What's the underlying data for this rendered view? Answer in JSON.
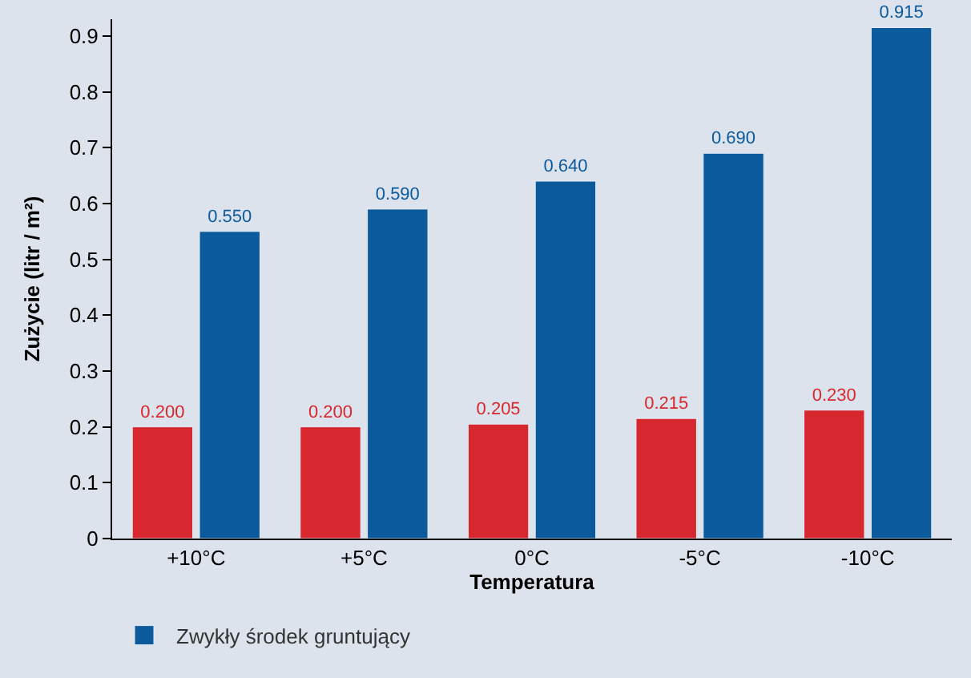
{
  "chart_data": {
    "type": "bar",
    "xlabel": "Temperatura",
    "ylabel": "Zużycie (litr / m²)",
    "categories": [
      "+10°C",
      "+5°C",
      "0°C",
      "-5°C",
      "-10°C"
    ],
    "series": [
      {
        "color": "#d7282f",
        "values": [
          0.2,
          0.2,
          0.205,
          0.215,
          0.23
        ],
        "value_labels": [
          "0.200",
          "0.200",
          "0.205",
          "0.215",
          "0.230"
        ]
      },
      {
        "name": "Zwykły środek gruntujący",
        "color": "#0b5a9c",
        "values": [
          0.55,
          0.59,
          0.64,
          0.69,
          0.915
        ],
        "value_labels": [
          "0.550",
          "0.590",
          "0.640",
          "0.690",
          "0.915"
        ]
      }
    ],
    "ylim": [
      0,
      0.93
    ],
    "yticks": [
      0,
      0.1,
      0.2,
      0.3,
      0.4,
      0.5,
      0.6,
      0.7,
      0.8,
      0.9
    ],
    "grid": false,
    "legend": "bottom left"
  }
}
